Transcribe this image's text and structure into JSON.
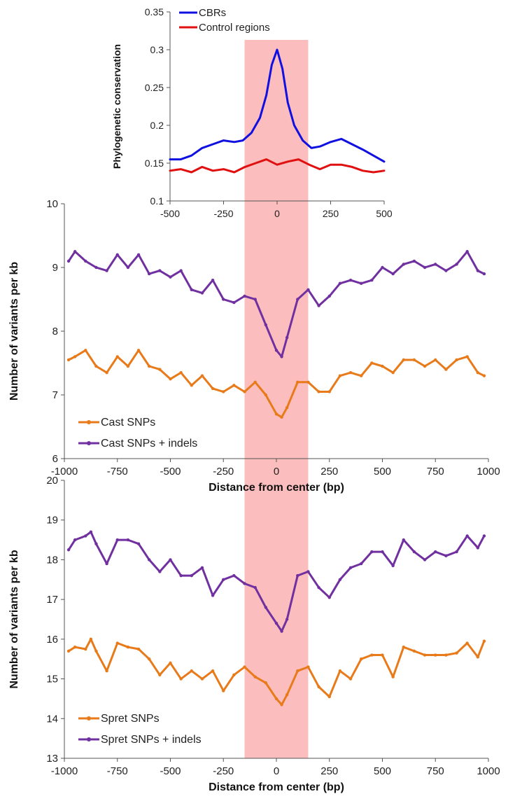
{
  "chart_data": [
    {
      "id": "conservation",
      "type": "line",
      "title": "",
      "xlabel": "",
      "ylabel": "Phylogenetic conservation",
      "xlim": [
        -500,
        500
      ],
      "ylim": [
        0.1,
        0.35
      ],
      "xticks": [
        -500,
        -250,
        0,
        250,
        500
      ],
      "yticks": [
        0.1,
        0.15,
        0.2,
        0.25,
        0.3,
        0.35
      ],
      "ytick_labels": [
        "0.1",
        "0.15",
        "0.2",
        "0.25",
        "0.3",
        "0.35"
      ],
      "highlight": {
        "from": -150,
        "to": 150,
        "color": "#fbbdbd"
      },
      "legend": {
        "placement": "top-left"
      },
      "series": [
        {
          "name": "CBRs",
          "color": "#1010e0",
          "x": [
            -500,
            -450,
            -400,
            -350,
            -300,
            -250,
            -200,
            -160,
            -120,
            -80,
            -50,
            -25,
            0,
            25,
            50,
            80,
            120,
            160,
            200,
            250,
            300,
            350,
            400,
            450,
            500
          ],
          "y": [
            0.155,
            0.155,
            0.16,
            0.17,
            0.175,
            0.18,
            0.178,
            0.18,
            0.19,
            0.21,
            0.24,
            0.28,
            0.3,
            0.275,
            0.23,
            0.2,
            0.18,
            0.17,
            0.172,
            0.178,
            0.182,
            0.175,
            0.168,
            0.16,
            0.152
          ]
        },
        {
          "name": "Control regions",
          "color": "#e01010",
          "x": [
            -500,
            -450,
            -400,
            -350,
            -300,
            -250,
            -200,
            -150,
            -100,
            -50,
            0,
            50,
            100,
            150,
            200,
            250,
            300,
            350,
            400,
            450,
            500
          ],
          "y": [
            0.14,
            0.142,
            0.138,
            0.145,
            0.14,
            0.142,
            0.138,
            0.145,
            0.15,
            0.155,
            0.148,
            0.152,
            0.155,
            0.148,
            0.142,
            0.148,
            0.148,
            0.145,
            0.14,
            0.138,
            0.14
          ]
        }
      ]
    },
    {
      "id": "cast",
      "type": "line",
      "title": "",
      "xlabel": "Distance from center (bp)",
      "ylabel": "Number of variants per kb",
      "xlim": [
        -1000,
        1000
      ],
      "ylim": [
        6,
        10
      ],
      "xticks": [
        -1000,
        -750,
        -500,
        -250,
        0,
        250,
        500,
        750,
        1000
      ],
      "yticks": [
        6,
        7,
        8,
        9,
        10
      ],
      "highlight": {
        "from": -150,
        "to": 150,
        "color": "#fbbdbd"
      },
      "legend": {
        "placement": "bottom-left"
      },
      "series": [
        {
          "name": "Cast SNPs",
          "color": "#e87a1a",
          "x": [
            -980,
            -950,
            -900,
            -850,
            -800,
            -750,
            -700,
            -650,
            -600,
            -550,
            -500,
            -450,
            -400,
            -350,
            -300,
            -250,
            -200,
            -150,
            -100,
            -50,
            0,
            25,
            50,
            100,
            150,
            200,
            250,
            300,
            350,
            400,
            450,
            500,
            550,
            600,
            650,
            700,
            750,
            800,
            850,
            900,
            950,
            980
          ],
          "y": [
            7.55,
            7.6,
            7.7,
            7.45,
            7.35,
            7.6,
            7.45,
            7.7,
            7.45,
            7.4,
            7.25,
            7.35,
            7.15,
            7.3,
            7.1,
            7.05,
            7.15,
            7.05,
            7.2,
            7.0,
            6.7,
            6.65,
            6.8,
            7.2,
            7.2,
            7.05,
            7.05,
            7.3,
            7.35,
            7.3,
            7.5,
            7.45,
            7.35,
            7.55,
            7.55,
            7.45,
            7.55,
            7.4,
            7.55,
            7.6,
            7.35,
            7.3
          ]
        },
        {
          "name": "Cast SNPs + indels",
          "color": "#7030a0",
          "x": [
            -980,
            -950,
            -900,
            -850,
            -800,
            -750,
            -700,
            -650,
            -600,
            -550,
            -500,
            -450,
            -400,
            -350,
            -300,
            -250,
            -200,
            -150,
            -100,
            -50,
            0,
            25,
            50,
            100,
            150,
            200,
            250,
            300,
            350,
            400,
            450,
            500,
            550,
            600,
            650,
            700,
            750,
            800,
            850,
            900,
            950,
            980
          ],
          "y": [
            9.1,
            9.25,
            9.1,
            9.0,
            8.95,
            9.2,
            9.0,
            9.2,
            8.9,
            8.95,
            8.85,
            8.95,
            8.65,
            8.6,
            8.8,
            8.5,
            8.45,
            8.55,
            8.5,
            8.1,
            7.7,
            7.6,
            7.9,
            8.5,
            8.65,
            8.4,
            8.55,
            8.75,
            8.8,
            8.75,
            8.8,
            9.0,
            8.9,
            9.05,
            9.1,
            9.0,
            9.05,
            8.95,
            9.05,
            9.25,
            8.95,
            8.9
          ]
        }
      ]
    },
    {
      "id": "spret",
      "type": "line",
      "title": "",
      "xlabel": "Distance from center (bp)",
      "ylabel": "Number of variants per kb",
      "xlim": [
        -1000,
        1000
      ],
      "ylim": [
        13,
        20
      ],
      "xticks": [
        -1000,
        -750,
        -500,
        -250,
        0,
        250,
        500,
        750,
        1000
      ],
      "yticks": [
        13,
        14,
        15,
        16,
        17,
        18,
        19,
        20
      ],
      "highlight": {
        "from": -150,
        "to": 150,
        "color": "#fbbdbd"
      },
      "legend": {
        "placement": "bottom-left"
      },
      "series": [
        {
          "name": "Spret SNPs",
          "color": "#e87a1a",
          "x": [
            -980,
            -950,
            -900,
            -875,
            -850,
            -800,
            -750,
            -700,
            -650,
            -600,
            -550,
            -500,
            -450,
            -400,
            -350,
            -300,
            -250,
            -200,
            -150,
            -100,
            -50,
            0,
            25,
            50,
            100,
            150,
            200,
            250,
            300,
            350,
            400,
            450,
            500,
            550,
            600,
            650,
            700,
            750,
            800,
            850,
            900,
            950,
            980
          ],
          "y": [
            15.7,
            15.8,
            15.75,
            16.0,
            15.7,
            15.2,
            15.9,
            15.8,
            15.75,
            15.5,
            15.1,
            15.4,
            15.0,
            15.2,
            15.0,
            15.2,
            14.7,
            15.1,
            15.3,
            15.05,
            14.9,
            14.5,
            14.35,
            14.6,
            15.2,
            15.3,
            14.8,
            14.55,
            15.2,
            15.0,
            15.5,
            15.6,
            15.6,
            15.05,
            15.8,
            15.7,
            15.6,
            15.6,
            15.6,
            15.65,
            15.9,
            15.55,
            15.95
          ]
        },
        {
          "name": "Spret SNPs + indels",
          "color": "#7030a0",
          "x": [
            -980,
            -950,
            -900,
            -875,
            -850,
            -800,
            -750,
            -700,
            -650,
            -600,
            -550,
            -500,
            -450,
            -400,
            -350,
            -300,
            -250,
            -200,
            -150,
            -100,
            -50,
            0,
            25,
            50,
            100,
            150,
            200,
            250,
            300,
            350,
            400,
            450,
            500,
            550,
            600,
            650,
            700,
            750,
            800,
            850,
            900,
            950,
            980
          ],
          "y": [
            18.25,
            18.5,
            18.6,
            18.7,
            18.4,
            17.9,
            18.5,
            18.5,
            18.4,
            18.0,
            17.7,
            18.0,
            17.6,
            17.6,
            17.8,
            17.1,
            17.5,
            17.6,
            17.4,
            17.3,
            16.8,
            16.4,
            16.2,
            16.5,
            17.6,
            17.7,
            17.3,
            17.05,
            17.5,
            17.8,
            17.9,
            18.2,
            18.2,
            17.85,
            18.5,
            18.2,
            18.0,
            18.2,
            18.1,
            18.2,
            18.6,
            18.3,
            18.6
          ]
        }
      ]
    }
  ]
}
